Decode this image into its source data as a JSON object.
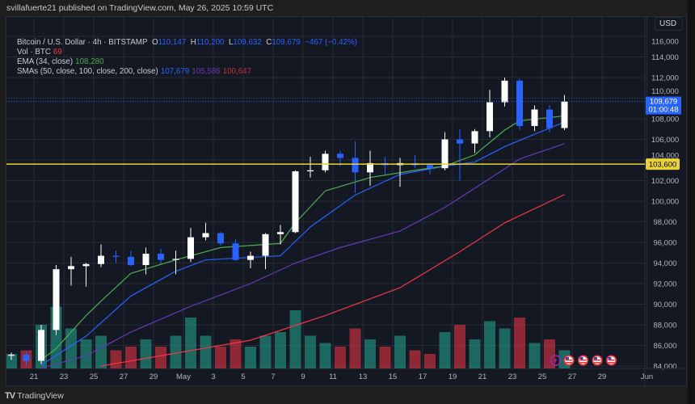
{
  "header": {
    "published": "svillafuerte21 published on TradingView.com, May 26, 2025 10:59 UTC"
  },
  "legend": {
    "symbol": "Bitcoin / U.S. Dollar · 4h · BITSTAMP",
    "o_label": "O",
    "o": "110,147",
    "h_label": "H",
    "h": "110,200",
    "l_label": "L",
    "l": "109,632",
    "c_label": "C",
    "c": "109,679",
    "change": "−467 (−0.42%)",
    "vol_label": "Vol · BTC",
    "vol": "69",
    "ema_label": "EMA (34, close)",
    "ema": "108,280",
    "sma_label": "SMAs (50, close, 100, close, 200, close)",
    "sma50": "107,679",
    "sma100": "105,586",
    "sma200": "100,647"
  },
  "currency_button": "USD",
  "footer": {
    "brand": "TradingView",
    "logo": "17"
  },
  "colors": {
    "up": "#ffffff",
    "down": "#2962ff",
    "vol_up": "#22ab94",
    "vol_down": "#f23645",
    "ema": "#4caf50",
    "sma50": "#2962ff",
    "sma100": "#673ab7",
    "sma200": "#f23645",
    "support": "#e8d43a",
    "price_line": "#2962ff",
    "grid": "#262a36",
    "text": "#b2b5be"
  },
  "chart_data": {
    "type": "candlestick",
    "title": "Bitcoin / U.S. Dollar · 4h · BITSTAMP",
    "ylim": [
      84000,
      116000
    ],
    "y_ticks": [
      "116,000",
      "114,000",
      "112,000",
      "110,000",
      "108,000",
      "106,000",
      "104,000",
      "102,000",
      "100,000",
      "98,000",
      "96,000",
      "94,000",
      "92,000",
      "90,000",
      "88,000",
      "86,000",
      "84,000"
    ],
    "x_ticks": [
      {
        "date": "2025-04-21",
        "label": "21"
      },
      {
        "date": "2025-04-23",
        "label": "23"
      },
      {
        "date": "2025-04-25",
        "label": "25"
      },
      {
        "date": "2025-04-27",
        "label": "27"
      },
      {
        "date": "2025-04-29",
        "label": "29"
      },
      {
        "date": "2025-05-01",
        "label": "May"
      },
      {
        "date": "2025-05-03",
        "label": "3"
      },
      {
        "date": "2025-05-05",
        "label": "5"
      },
      {
        "date": "2025-05-07",
        "label": "7"
      },
      {
        "date": "2025-05-09",
        "label": "9"
      },
      {
        "date": "2025-05-11",
        "label": "11"
      },
      {
        "date": "2025-05-13",
        "label": "13"
      },
      {
        "date": "2025-05-15",
        "label": "15"
      },
      {
        "date": "2025-05-17",
        "label": "17"
      },
      {
        "date": "2025-05-19",
        "label": "19"
      },
      {
        "date": "2025-05-21",
        "label": "21"
      },
      {
        "date": "2025-05-23",
        "label": "23"
      },
      {
        "date": "2025-05-25",
        "label": "25"
      },
      {
        "date": "2025-05-27",
        "label": "27"
      },
      {
        "date": "2025-05-29",
        "label": "29"
      },
      {
        "date": "2025-06-01",
        "label": "Jun"
      }
    ],
    "grid": true,
    "candles": [
      [
        "2025-04-19",
        85000,
        85300,
        84600,
        85100
      ],
      [
        "2025-04-20",
        85100,
        85400,
        84000,
        84500
      ],
      [
        "2025-04-21",
        84500,
        88000,
        84200,
        87500
      ],
      [
        "2025-04-22",
        87500,
        93800,
        87000,
        93400
      ],
      [
        "2025-04-23",
        93400,
        94600,
        91800,
        93700
      ],
      [
        "2025-04-24",
        93700,
        94000,
        91700,
        93900
      ],
      [
        "2025-04-25",
        93900,
        95800,
        93600,
        94700
      ],
      [
        "2025-04-26",
        94700,
        95200,
        94000,
        94600
      ],
      [
        "2025-04-27",
        94600,
        95200,
        93700,
        93800
      ],
      [
        "2025-04-28",
        93800,
        95500,
        92900,
        94900
      ],
      [
        "2025-04-29",
        94900,
        95400,
        93900,
        94300
      ],
      [
        "2025-04-30",
        94300,
        95200,
        92900,
        94400
      ],
      [
        "2025-05-01",
        94400,
        97400,
        94100,
        96500
      ],
      [
        "2025-05-02",
        96500,
        97900,
        96200,
        96900
      ],
      [
        "2025-05-03",
        96900,
        97000,
        95700,
        95900
      ],
      [
        "2025-05-04",
        95900,
        96300,
        94200,
        94300
      ],
      [
        "2025-05-05",
        94300,
        95100,
        93500,
        94700
      ],
      [
        "2025-05-06",
        94700,
        96900,
        93400,
        96800
      ],
      [
        "2025-05-07",
        96800,
        97700,
        95800,
        97000
      ],
      [
        "2025-05-08",
        97000,
        103000,
        96900,
        102900
      ],
      [
        "2025-05-09",
        102900,
        104300,
        102300,
        103000
      ],
      [
        "2025-05-10",
        103000,
        104900,
        102800,
        104600
      ],
      [
        "2025-05-11",
        104600,
        104900,
        103400,
        104200
      ],
      [
        "2025-05-12",
        104200,
        105800,
        100800,
        102800
      ],
      [
        "2025-05-13",
        102800,
        104900,
        101500,
        103700
      ],
      [
        "2025-05-14",
        103700,
        104300,
        102600,
        103500
      ],
      [
        "2025-05-15",
        103500,
        104200,
        101400,
        103700
      ],
      [
        "2025-05-16",
        103700,
        104500,
        103200,
        103500
      ],
      [
        "2025-05-17",
        103500,
        103700,
        102600,
        103200
      ],
      [
        "2025-05-18",
        103200,
        106700,
        103000,
        106000
      ],
      [
        "2025-05-19",
        106000,
        107000,
        102000,
        105600
      ],
      [
        "2025-05-20",
        105600,
        107000,
        104700,
        106800
      ],
      [
        "2025-05-21",
        106800,
        110800,
        106200,
        109600
      ],
      [
        "2025-05-22",
        109600,
        112000,
        109200,
        111700
      ],
      [
        "2025-05-23",
        111700,
        111900,
        106900,
        107300
      ],
      [
        "2025-05-24",
        107300,
        109300,
        106800,
        108900
      ],
      [
        "2025-05-25",
        108900,
        109300,
        106700,
        107100
      ],
      [
        "2025-05-26",
        107100,
        110300,
        106900,
        109679
      ]
    ],
    "volume_relative": [
      20,
      25,
      60,
      85,
      55,
      40,
      45,
      25,
      30,
      40,
      30,
      45,
      70,
      45,
      30,
      40,
      30,
      45,
      50,
      80,
      45,
      35,
      30,
      55,
      40,
      30,
      45,
      25,
      20,
      50,
      60,
      40,
      65,
      55,
      70,
      35,
      40,
      25
    ],
    "lines": {
      "ema34": [
        [
          "2025-04-21",
          84600
        ],
        [
          "2025-04-22",
          85700
        ],
        [
          "2025-04-24",
          88900
        ],
        [
          "2025-04-25",
          90300
        ],
        [
          "2025-04-27",
          93000
        ],
        [
          "2025-04-30",
          94300
        ],
        [
          "2025-05-03",
          95500
        ],
        [
          "2025-05-07",
          95900
        ],
        [
          "2025-05-08",
          97900
        ],
        [
          "2025-05-10",
          101000
        ],
        [
          "2025-05-13",
          102300
        ],
        [
          "2025-05-16",
          103000
        ],
        [
          "2025-05-18",
          103400
        ],
        [
          "2025-05-20",
          104500
        ],
        [
          "2025-05-22",
          106900
        ],
        [
          "2025-05-23",
          107800
        ],
        [
          "2025-05-26",
          108280
        ]
      ],
      "sma50": [
        [
          "2025-04-21",
          84100
        ],
        [
          "2025-04-24",
          86900
        ],
        [
          "2025-04-27",
          90800
        ],
        [
          "2025-04-30",
          93200
        ],
        [
          "2025-05-02",
          94300
        ],
        [
          "2025-05-07",
          94700
        ],
        [
          "2025-05-09",
          97500
        ],
        [
          "2025-05-12",
          100600
        ],
        [
          "2025-05-15",
          102600
        ],
        [
          "2025-05-18",
          103400
        ],
        [
          "2025-05-20",
          103800
        ],
        [
          "2025-05-22",
          105300
        ],
        [
          "2025-05-24",
          106500
        ],
        [
          "2025-05-26",
          107679
        ]
      ],
      "sma100": [
        [
          "2025-04-21",
          83800
        ],
        [
          "2025-04-24",
          85000
        ],
        [
          "2025-04-27",
          87300
        ],
        [
          "2025-05-01",
          89800
        ],
        [
          "2025-05-05",
          92000
        ],
        [
          "2025-05-08",
          94000
        ],
        [
          "2025-05-11",
          95500
        ],
        [
          "2025-05-15",
          97100
        ],
        [
          "2025-05-18",
          99400
        ],
        [
          "2025-05-21",
          102200
        ],
        [
          "2025-05-23",
          104100
        ],
        [
          "2025-05-26",
          105586
        ]
      ],
      "sma200": [
        [
          "2025-04-25",
          84000
        ],
        [
          "2025-04-29",
          85000
        ],
        [
          "2025-05-05",
          86500
        ],
        [
          "2025-05-10",
          88900
        ],
        [
          "2025-05-15",
          91600
        ],
        [
          "2025-05-19",
          95100
        ],
        [
          "2025-05-22",
          97900
        ],
        [
          "2025-05-26",
          100647
        ]
      ]
    },
    "horizontal_lines": [
      {
        "value": 103600,
        "label": "103,600"
      },
      {
        "value": 109679,
        "label": "109,679",
        "countdown": "01:00:48"
      }
    ],
    "events": [
      {
        "date": "2025-05-26",
        "icon": "lightning-icon"
      },
      {
        "date": "2025-05-27",
        "icon": "us-flag-icon"
      },
      {
        "date": "2025-05-28",
        "icon": "us-flag-icon"
      },
      {
        "date": "2025-05-29",
        "icon": "us-flag-icon"
      },
      {
        "date": "2025-05-30",
        "icon": "us-flag-icon"
      }
    ]
  }
}
